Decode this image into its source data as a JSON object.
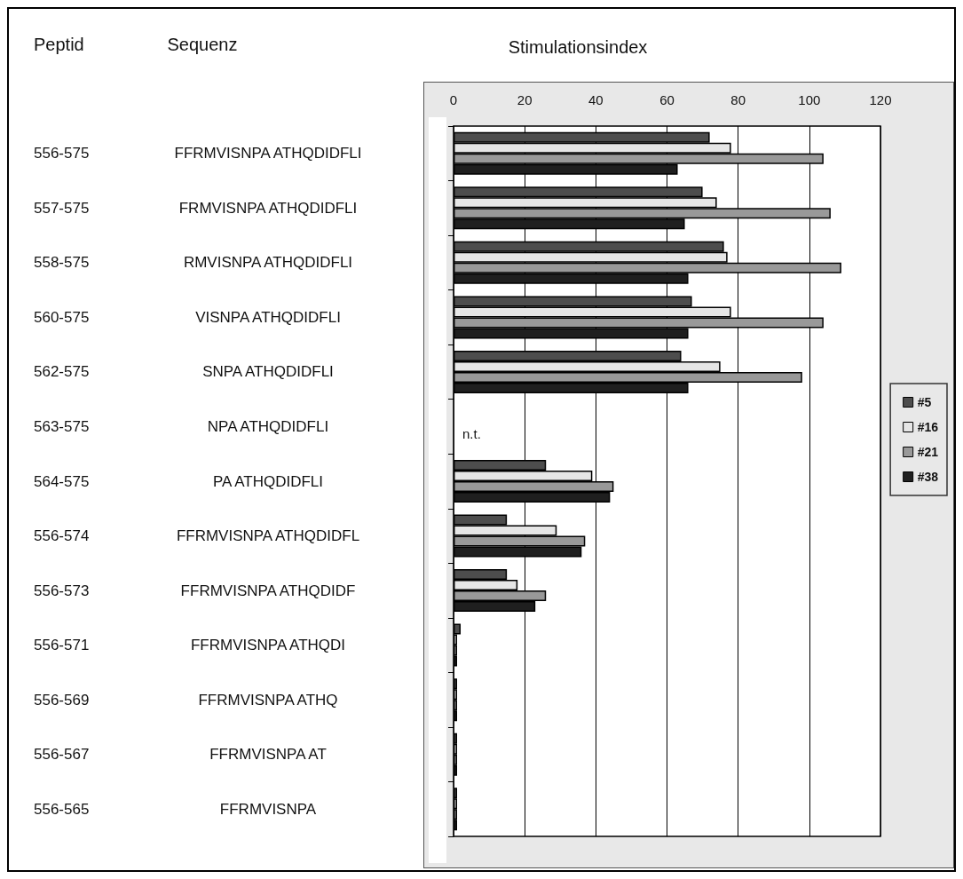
{
  "chart_data": {
    "type": "bar",
    "orientation": "horizontal",
    "title": "Stimulationsindex",
    "annotations": [
      "Peptid",
      "Sequenz",
      "n.t."
    ],
    "categories": [
      "FFRMVISNPA ATHQDIDFLI",
      "FRMVISNPA ATHQDIDFLI",
      "RMVISNPA ATHQDIDFLI",
      "VISNPA ATHQDIDFLI",
      "SNPA ATHQDIDFLI",
      "NPA ATHQDIDFLI",
      "PA ATHQDIDFLI",
      "FFRMVISNPA ATHQDIDFL",
      "FFRMVISNPA ATHQDIDF",
      "FFRMVISNPA ATHQDI",
      "FFRMVISNPA ATHQ",
      "FFRMVISNPA AT",
      "FFRMVISNPA"
    ],
    "y2_categories": [
      "556-575",
      "557-575",
      "558-575",
      "560-575",
      "562-575",
      "563-575",
      "564-575",
      "556-574",
      "556-573",
      "556-571",
      "556-569",
      "556-567",
      "556-565"
    ],
    "series": [
      {
        "name": "#5",
        "color": "#4d4d4d",
        "values": [
          72,
          70,
          76,
          67,
          64,
          null,
          26,
          15,
          15,
          2,
          1,
          1,
          1
        ]
      },
      {
        "name": "#16",
        "color": "#e6e6e6",
        "values": [
          78,
          74,
          77,
          78,
          75,
          null,
          39,
          29,
          18,
          1,
          1,
          1,
          1
        ]
      },
      {
        "name": "#21",
        "color": "#999999",
        "values": [
          104,
          106,
          109,
          104,
          98,
          null,
          45,
          37,
          26,
          1,
          1,
          1,
          1
        ]
      },
      {
        "name": "#38",
        "color": "#1f1f1f",
        "values": [
          63,
          65,
          66,
          66,
          66,
          null,
          44,
          36,
          23,
          1,
          1,
          1,
          1
        ]
      }
    ],
    "xlim": [
      0,
      120
    ],
    "xticks": [
      0,
      20,
      40,
      60,
      80,
      100,
      120
    ],
    "grid": "x",
    "legend": "right"
  }
}
